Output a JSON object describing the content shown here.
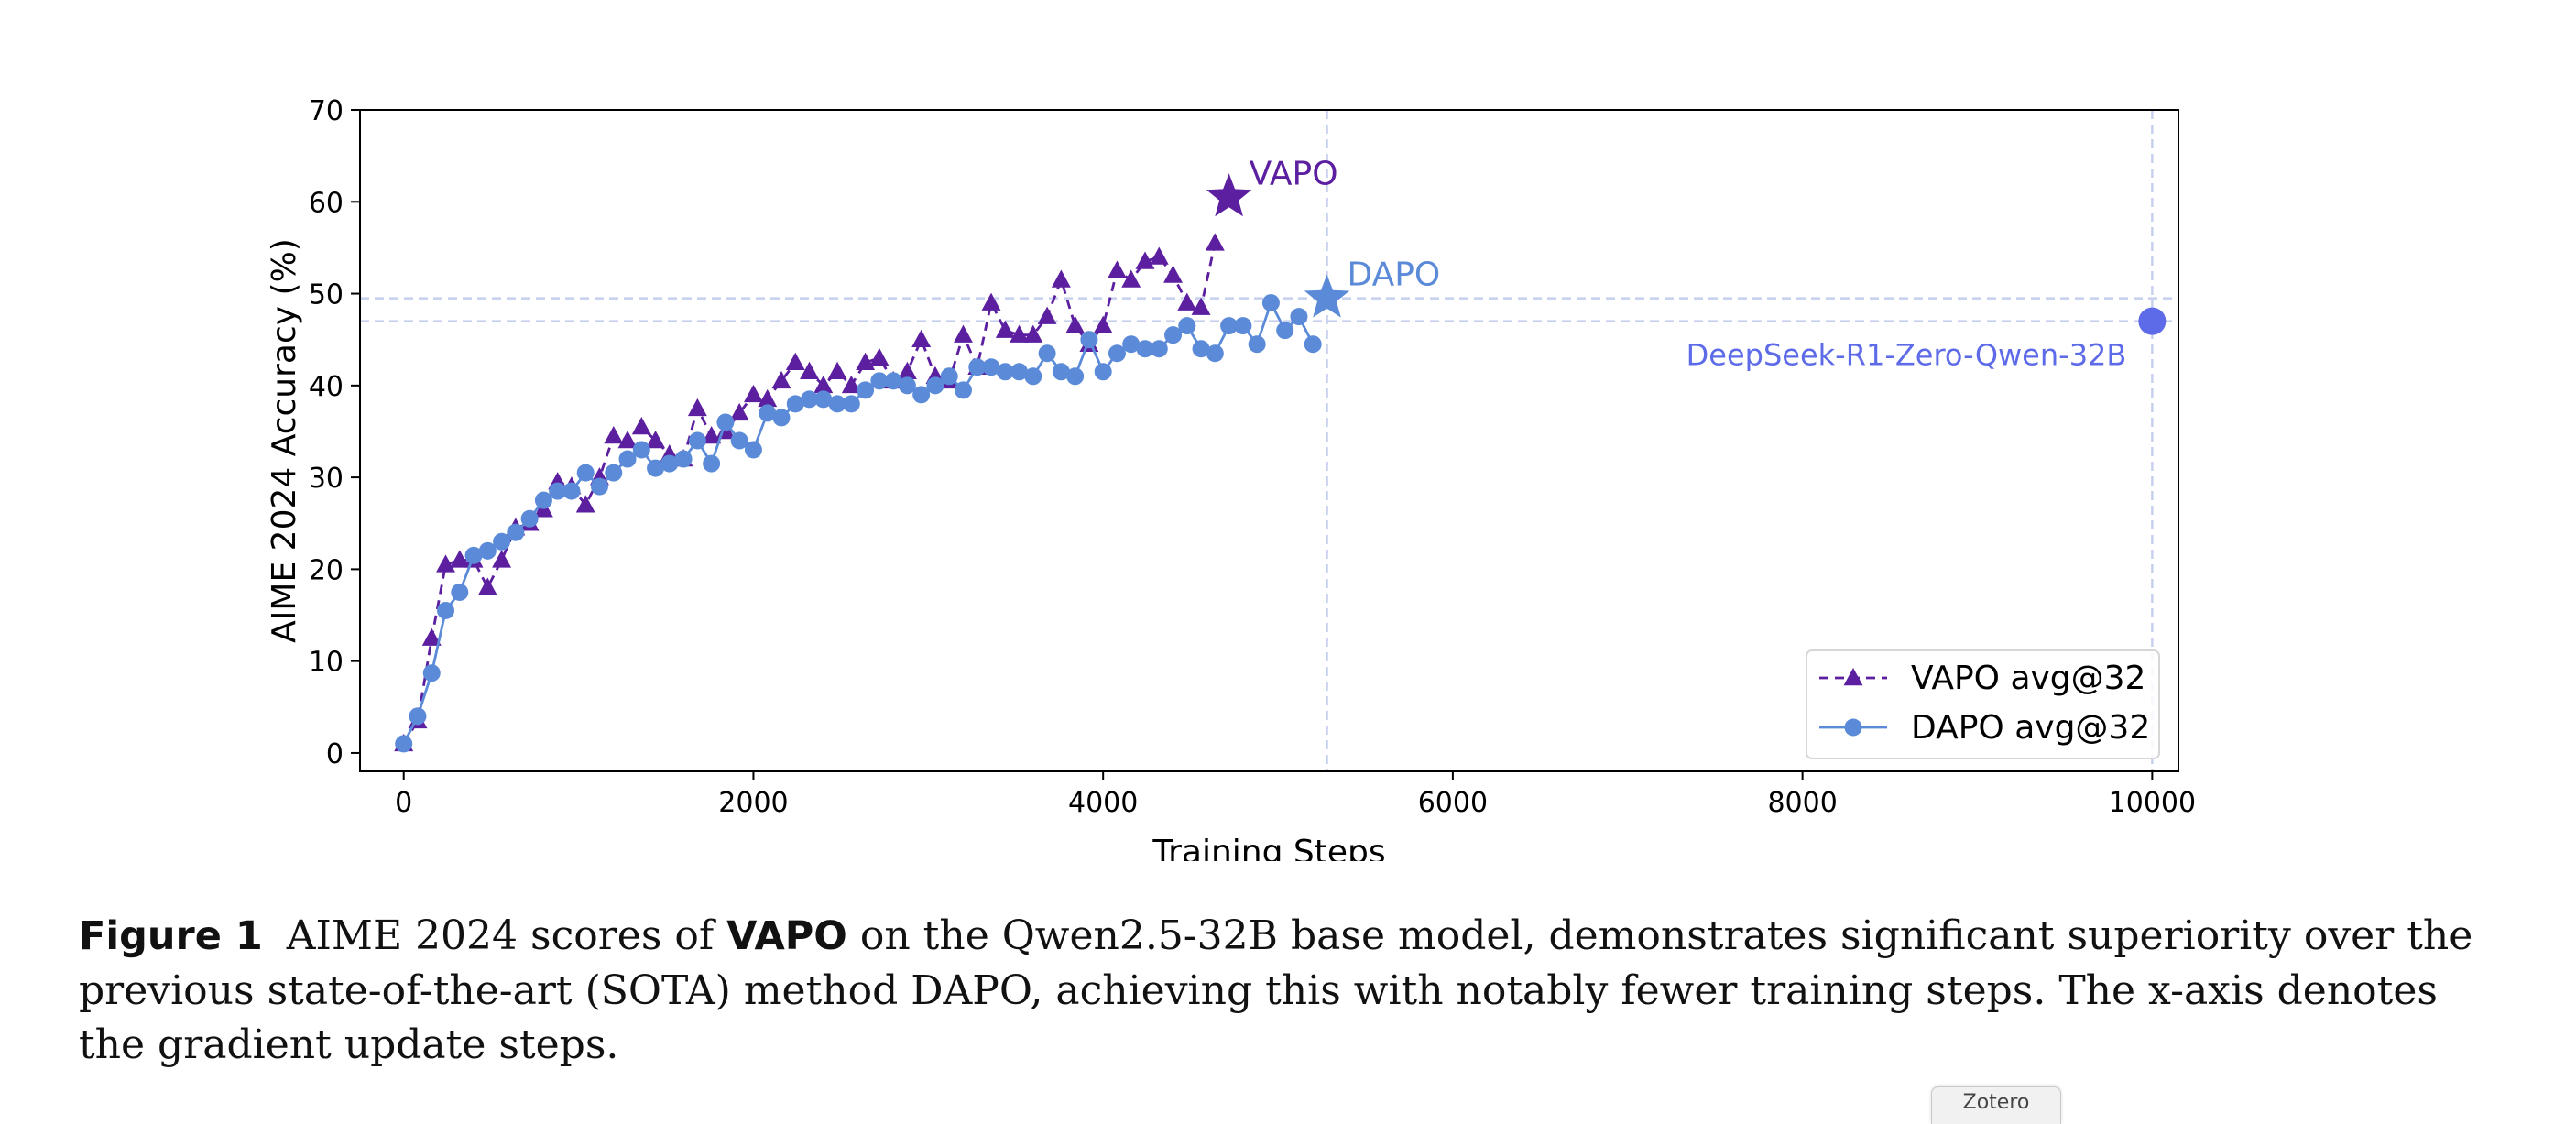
{
  "chart_data": {
    "type": "line",
    "xlabel": "Training Steps",
    "ylabel": "AIME 2024 Accuracy (%)",
    "xlim": [
      -250,
      10150
    ],
    "ylim": [
      -2,
      70
    ],
    "xticks": [
      0,
      2000,
      4000,
      6000,
      8000,
      10000
    ],
    "yticks": [
      0,
      10,
      20,
      30,
      40,
      50,
      60,
      70
    ],
    "grid": false,
    "legend_position": "lower-right",
    "series": [
      {
        "name": "VAPO avg@32",
        "color": "#5b1fa0",
        "line_style": "dashed",
        "marker": "triangle",
        "x": [
          0,
          80,
          160,
          240,
          320,
          400,
          480,
          560,
          640,
          720,
          800,
          880,
          960,
          1040,
          1120,
          1200,
          1280,
          1360,
          1440,
          1520,
          1600,
          1680,
          1760,
          1840,
          1920,
          2000,
          2080,
          2160,
          2240,
          2320,
          2400,
          2480,
          2560,
          2640,
          2720,
          2800,
          2880,
          2960,
          3040,
          3120,
          3200,
          3280,
          3360,
          3440,
          3520,
          3600,
          3680,
          3760,
          3840,
          3920,
          4000,
          4080,
          4160,
          4240,
          4320,
          4400,
          4480,
          4560,
          4640
        ],
        "y": [
          1,
          3.5,
          12.5,
          20.5,
          21,
          21,
          18,
          21,
          24.5,
          25,
          26.5,
          29.5,
          29,
          27,
          30,
          34.5,
          34,
          35.5,
          34,
          32.5,
          32,
          37.5,
          34.5,
          35,
          37,
          39,
          38.5,
          40.5,
          42.5,
          41.5,
          40,
          41.5,
          40,
          42.5,
          43,
          40.5,
          41.5,
          45,
          41,
          40.5,
          45.5,
          42,
          49,
          46,
          45.5,
          45.5,
          47.5,
          51.5,
          46.5,
          44.5,
          46.5,
          52.5,
          51.5,
          53.5,
          54,
          52,
          49,
          48.5,
          55.5
        ]
      },
      {
        "name": "DAPO avg@32",
        "color": "#5b8ad8",
        "line_style": "solid",
        "marker": "circle",
        "x": [
          0,
          80,
          160,
          240,
          320,
          400,
          480,
          560,
          640,
          720,
          800,
          880,
          960,
          1040,
          1120,
          1200,
          1280,
          1360,
          1440,
          1520,
          1600,
          1680,
          1760,
          1840,
          1920,
          2000,
          2080,
          2160,
          2240,
          2320,
          2400,
          2480,
          2560,
          2640,
          2720,
          2800,
          2880,
          2960,
          3040,
          3120,
          3200,
          3280,
          3360,
          3440,
          3520,
          3600,
          3680,
          3760,
          3840,
          3920,
          4000,
          4080,
          4160,
          4240,
          4320,
          4400,
          4480,
          4560,
          4640,
          4720,
          4800,
          4880,
          4960,
          5040,
          5120,
          5200
        ],
        "y": [
          1,
          4,
          8.7,
          15.5,
          17.5,
          21.5,
          22,
          23,
          24,
          25.5,
          27.5,
          28.5,
          28.5,
          30.5,
          29,
          30.5,
          32,
          33,
          31,
          31.5,
          32,
          34,
          31.5,
          36,
          34,
          33,
          37,
          36.5,
          38,
          38.5,
          38.5,
          38,
          38,
          39.5,
          40.5,
          40.5,
          40,
          39,
          40,
          41,
          39.5,
          42,
          42,
          41.5,
          41.5,
          41,
          43.5,
          41.5,
          41,
          45,
          41.5,
          43.5,
          44.5,
          44,
          44,
          45.5,
          46.5,
          44,
          43.5,
          46.5,
          46.5,
          44.5,
          49,
          46,
          47.5,
          44.5
        ]
      }
    ],
    "highlights": [
      {
        "name": "VAPO",
        "x": 4720,
        "y": 60.5,
        "marker": "star",
        "color": "#5b1fa0"
      },
      {
        "name": "DAPO",
        "x": 5280,
        "y": 49.5,
        "marker": "star",
        "color": "#5b8ad8"
      },
      {
        "name": "DeepSeek-R1-Zero-Qwen-32B",
        "x": 10000,
        "y": 47,
        "marker": "circle",
        "color": "#5d6be8"
      }
    ]
  },
  "caption": {
    "label": "Figure 1",
    "part1": " AIME 2024 scores of ",
    "method": "VAPO",
    "part2": " on the Qwen2.5-32B base model, demonstrates significant superiority over the previous state-of-the-art (SOTA) method DAPO, achieving this with notably fewer training steps. The x-axis denotes the gradient update steps."
  },
  "overlay": {
    "zotero_label": "Zotero"
  }
}
